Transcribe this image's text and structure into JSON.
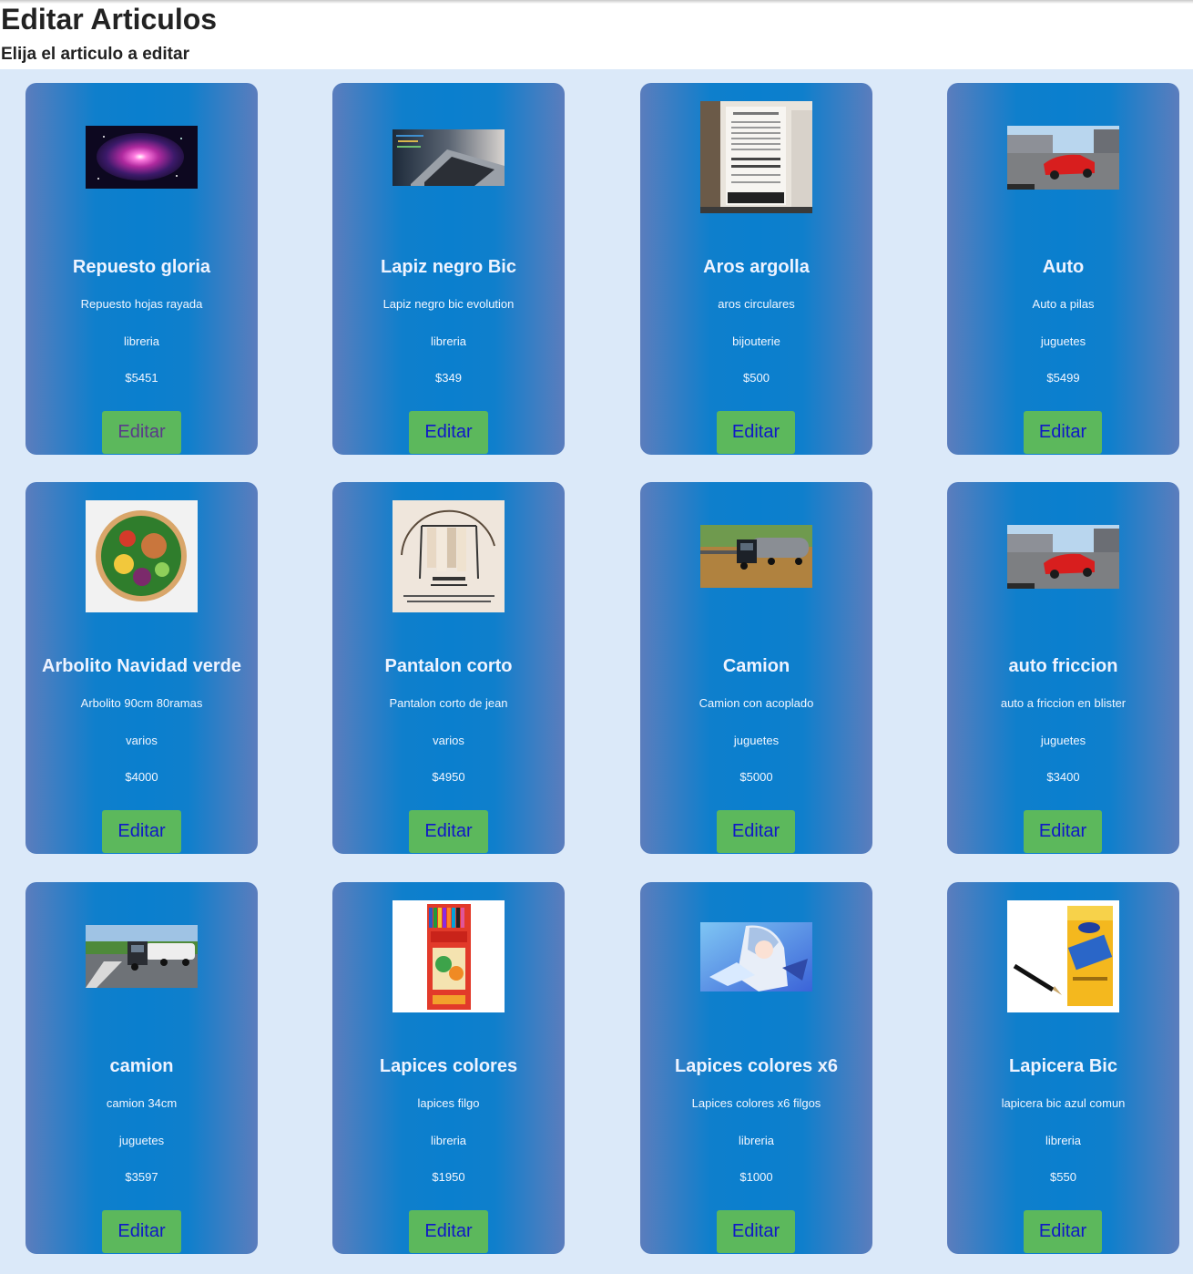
{
  "header": {
    "title": "Editar Articulos",
    "subtitle": "Elija el articulo a editar"
  },
  "articles": [
    {
      "title": "Repuesto gloria",
      "description": "Repuesto hojas rayada",
      "category": "libreria",
      "price": "$5451",
      "button": "Editar",
      "image": "galaxy-nebula"
    },
    {
      "title": "Lapiz negro Bic",
      "description": "Lapiz negro bic evolution",
      "category": "libreria",
      "price": "$349",
      "button": "Editar",
      "image": "laptop-keyboard"
    },
    {
      "title": "Aros argolla",
      "description": "aros circulares",
      "category": "bijouterie",
      "price": "$500",
      "button": "Editar",
      "image": "fashion-flyer"
    },
    {
      "title": "Auto",
      "description": "Auto a pilas",
      "category": "juguetes",
      "price": "$5499",
      "button": "Editar",
      "image": "red-sports-car"
    },
    {
      "title": "Arbolito Navidad verde",
      "description": "Arbolito 90cm 80ramas",
      "category": "varios",
      "price": "$4000",
      "button": "Editar",
      "image": "salad-bowl"
    },
    {
      "title": "Pantalon corto",
      "description": "Pantalon corto de jean",
      "category": "varios",
      "price": "$4950",
      "button": "Editar",
      "image": "clothes-rack-flyer"
    },
    {
      "title": "Camion",
      "description": "Camion con acoplado",
      "category": "juguetes",
      "price": "$5000",
      "button": "Editar",
      "image": "truck-tanker"
    },
    {
      "title": "auto friccion",
      "description": "auto a friccion en blister",
      "category": "juguetes",
      "price": "$3400",
      "button": "Editar",
      "image": "red-sports-car"
    },
    {
      "title": "camion",
      "description": "camion 34cm",
      "category": "juguetes",
      "price": "$3597",
      "button": "Editar",
      "image": "truck-road"
    },
    {
      "title": "Lapices colores",
      "description": "lapices filgo",
      "category": "libreria",
      "price": "$1950",
      "button": "Editar",
      "image": "filgo-pencils-box"
    },
    {
      "title": "Lapices colores x6",
      "description": "Lapices colores x6 filgos",
      "category": "libreria",
      "price": "$1000",
      "button": "Editar",
      "image": "anime-character"
    },
    {
      "title": "Lapicera Bic",
      "description": "lapicera bic azul comun",
      "category": "libreria",
      "price": "$550",
      "button": "Editar",
      "image": "bic-pen-box"
    }
  ]
}
